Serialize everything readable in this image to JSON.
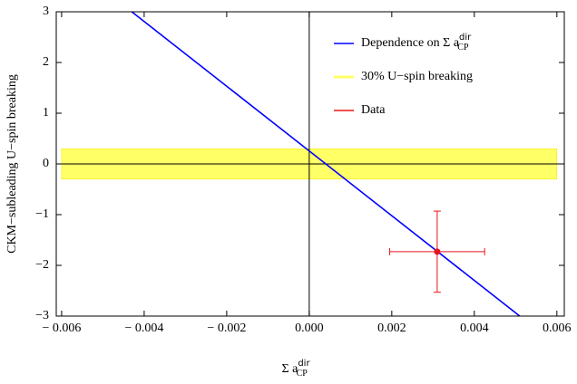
{
  "chart_data": {
    "type": "line",
    "x_label": {
      "base": "Σ a",
      "sub": "CP",
      "sup": "dir"
    },
    "y_label": "CKM−subleading U−spin breaking",
    "xlim": [
      -0.00613,
      0.00618
    ],
    "ylim": [
      -3,
      3
    ],
    "xticks": [
      {
        "value": -0.006,
        "label": "− 0.006"
      },
      {
        "value": -0.004,
        "label": "− 0.004"
      },
      {
        "value": -0.002,
        "label": "− 0.002"
      },
      {
        "value": 0,
        "label": "0.000"
      },
      {
        "value": 0.002,
        "label": "0.002"
      },
      {
        "value": 0.004,
        "label": "0.004"
      },
      {
        "value": 0.006,
        "label": "0.006"
      }
    ],
    "yticks": [
      {
        "value": -3,
        "label": "−3"
      },
      {
        "value": -2,
        "label": "−2"
      },
      {
        "value": -1,
        "label": "−1"
      },
      0,
      1,
      2,
      3
    ],
    "series": [
      {
        "name": {
          "base": "Dependence  on  Σ a",
          "sub": "CP",
          "sup": "dir"
        },
        "kind": "line",
        "color": "#0000ff",
        "x": [
          -0.0043,
          0.0051
        ],
        "values": [
          3,
          -3
        ]
      },
      {
        "name": "30% U−spin breaking",
        "kind": "band",
        "color": "#ffff66",
        "x": [
          -0.006,
          0.006
        ],
        "low": -0.3,
        "high": 0.3
      },
      {
        "name": "Data",
        "kind": "errorpoint",
        "color": "#e8141c",
        "x": [
          0.0031
        ],
        "values": [
          -1.73
        ],
        "xerr": [
          0.00115
        ],
        "yerr": [
          0.8
        ]
      }
    ]
  }
}
